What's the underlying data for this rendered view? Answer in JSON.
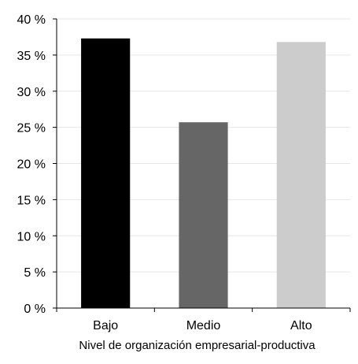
{
  "chart_data": {
    "type": "bar",
    "categories": [
      "Bajo",
      "Medio",
      "Alto"
    ],
    "values": [
      37.3,
      25.7,
      36.8
    ],
    "colors": [
      "#000000",
      "#666666",
      "#cccccc"
    ],
    "xlabel": "Nivel de organización empresarial-productiva",
    "ylabel": "",
    "ylim": [
      0,
      40
    ],
    "yticks": [
      0,
      5,
      10,
      15,
      20,
      25,
      30,
      35,
      40
    ],
    "ytick_labels": [
      "0 %",
      "5 %",
      "10 %",
      "15 %",
      "20 %",
      "25 %",
      "30 %",
      "35 %",
      "40 %"
    ],
    "grid": true,
    "grid_color": "#e6e6e6",
    "legend": "none"
  }
}
